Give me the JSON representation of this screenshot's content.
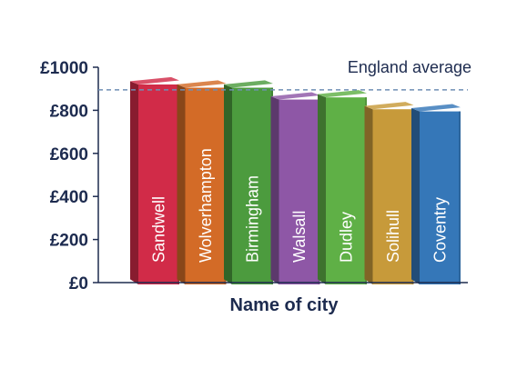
{
  "chart_data": {
    "type": "bar",
    "title": "",
    "xlabel": "Name of city",
    "ylabel": "",
    "categories": [
      "Sandwell",
      "Wolverhampton",
      "Birmingham",
      "Walsall",
      "Dudley",
      "Solihull",
      "Coventry"
    ],
    "values": [
      920,
      905,
      905,
      850,
      860,
      805,
      795
    ],
    "ylim": [
      0,
      1000
    ],
    "yticks": [
      0,
      200,
      400,
      600,
      800,
      1000
    ],
    "ytick_labels": [
      "£0",
      "£200",
      "£400",
      "£600",
      "£800",
      "£1000"
    ],
    "grid": false,
    "bar_labels_inside": true,
    "style": "3d-bars",
    "bar_colors": [
      "#d12b48",
      "#d36b27",
      "#4c9b3e",
      "#8e57a6",
      "#5fb046",
      "#c79a3a",
      "#3577b8"
    ],
    "reference_line": {
      "label": "England average",
      "value": 895,
      "color": "#6f8fb5",
      "style": "dashed"
    }
  }
}
